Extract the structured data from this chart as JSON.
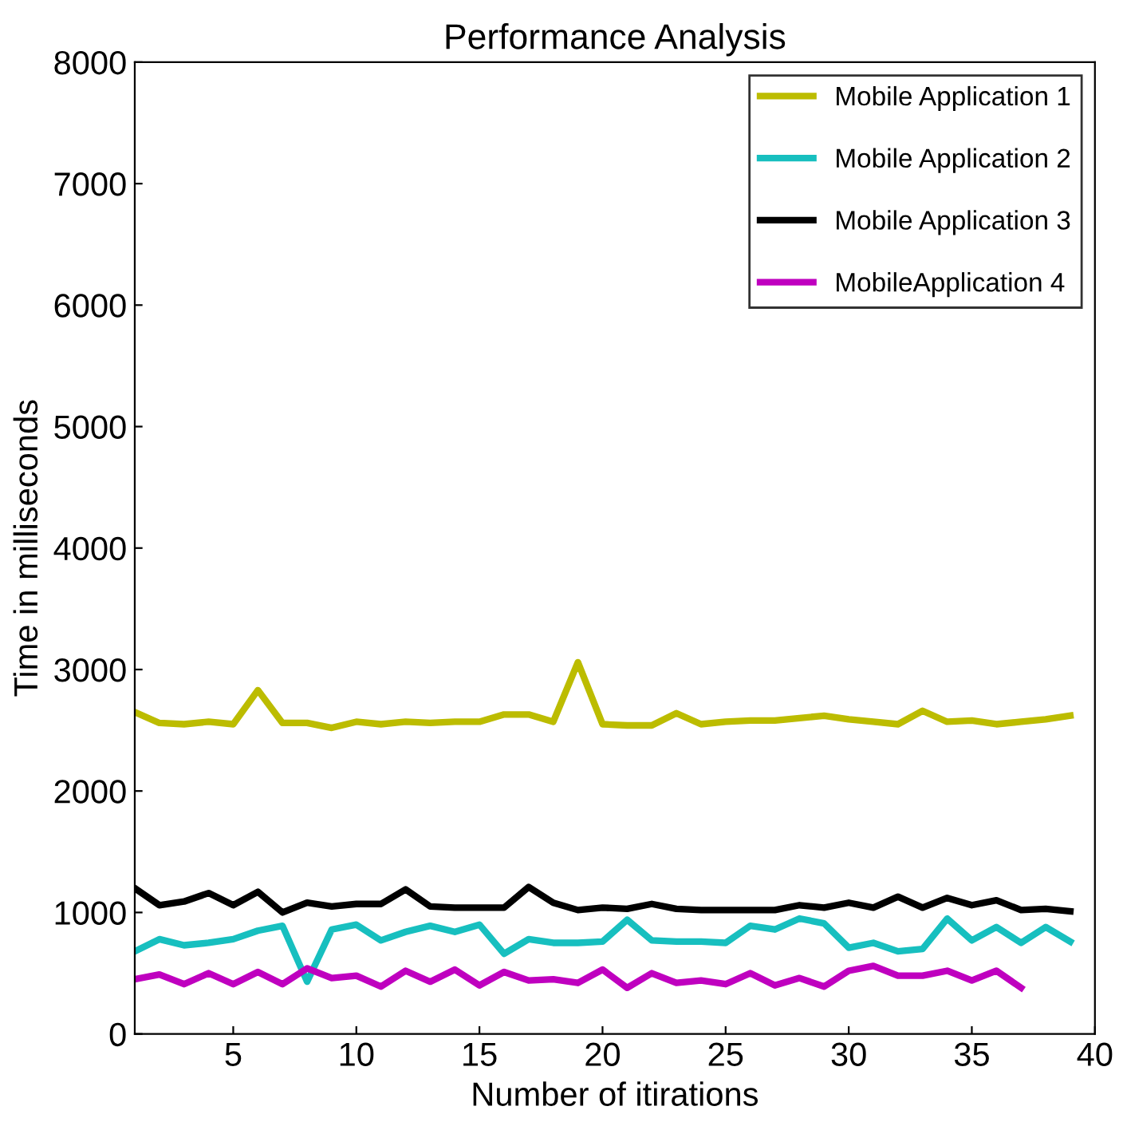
{
  "chart_data": {
    "type": "line",
    "title": "Performance Analysis",
    "xlabel": "Number of itirations",
    "ylabel": "Time in milliseconds",
    "x": [
      1,
      2,
      3,
      4,
      5,
      6,
      7,
      8,
      9,
      10,
      11,
      12,
      13,
      14,
      15,
      16,
      17,
      18,
      19,
      20,
      21,
      22,
      23,
      24,
      25,
      26,
      27,
      28,
      29,
      30,
      31,
      32,
      33,
      34,
      35,
      36,
      37,
      38,
      39
    ],
    "series": [
      {
        "name": "Mobile Application 1",
        "color": "#bcbc00",
        "values": [
          2650,
          2560,
          2550,
          2570,
          2550,
          2830,
          2560,
          2560,
          2520,
          2570,
          2550,
          2570,
          2560,
          2570,
          2570,
          2630,
          2630,
          2570,
          3060,
          2550,
          2540,
          2540,
          2640,
          2550,
          2570,
          2580,
          2580,
          2600,
          2620,
          2590,
          2570,
          2550,
          2660,
          2570,
          2580,
          2550,
          2570,
          2590,
          2620
        ]
      },
      {
        "name": "Mobile Application 2",
        "color": "#17bfbf",
        "values": [
          680,
          780,
          730,
          750,
          780,
          850,
          890,
          430,
          860,
          900,
          770,
          840,
          890,
          840,
          900,
          660,
          780,
          750,
          750,
          760,
          940,
          770,
          760,
          760,
          750,
          890,
          860,
          950,
          910,
          710,
          750,
          680,
          700,
          950,
          770,
          880,
          750,
          880,
          760
        ]
      },
      {
        "name": "Mobile Application 3",
        "color": "#000000",
        "values": [
          1200,
          1060,
          1090,
          1160,
          1060,
          1170,
          1000,
          1080,
          1050,
          1070,
          1070,
          1190,
          1050,
          1040,
          1040,
          1040,
          1210,
          1080,
          1020,
          1040,
          1030,
          1070,
          1030,
          1020,
          1020,
          1020,
          1020,
          1060,
          1040,
          1080,
          1040,
          1130,
          1040,
          1120,
          1060,
          1100,
          1020,
          1030,
          1010
        ]
      },
      {
        "name": "MobileApplication 4",
        "color": "#bf00bf",
        "values": [
          450,
          490,
          410,
          500,
          410,
          510,
          410,
          540,
          460,
          480,
          390,
          520,
          430,
          530,
          400,
          510,
          440,
          450,
          420,
          530,
          380,
          500,
          420,
          440,
          410,
          500,
          400,
          460,
          390,
          520,
          560,
          480,
          480,
          520,
          440,
          520,
          380,
          null,
          null
        ]
      }
    ],
    "xlim": [
      1,
      40
    ],
    "xticks": [
      5,
      10,
      15,
      20,
      25,
      30,
      35,
      40
    ],
    "ylim": [
      0,
      8000
    ],
    "yticks": [
      0,
      1000,
      2000,
      3000,
      4000,
      5000,
      6000,
      7000,
      8000
    ],
    "legend": "top right",
    "grid": false,
    "line_style": "solid",
    "marker": "none"
  }
}
